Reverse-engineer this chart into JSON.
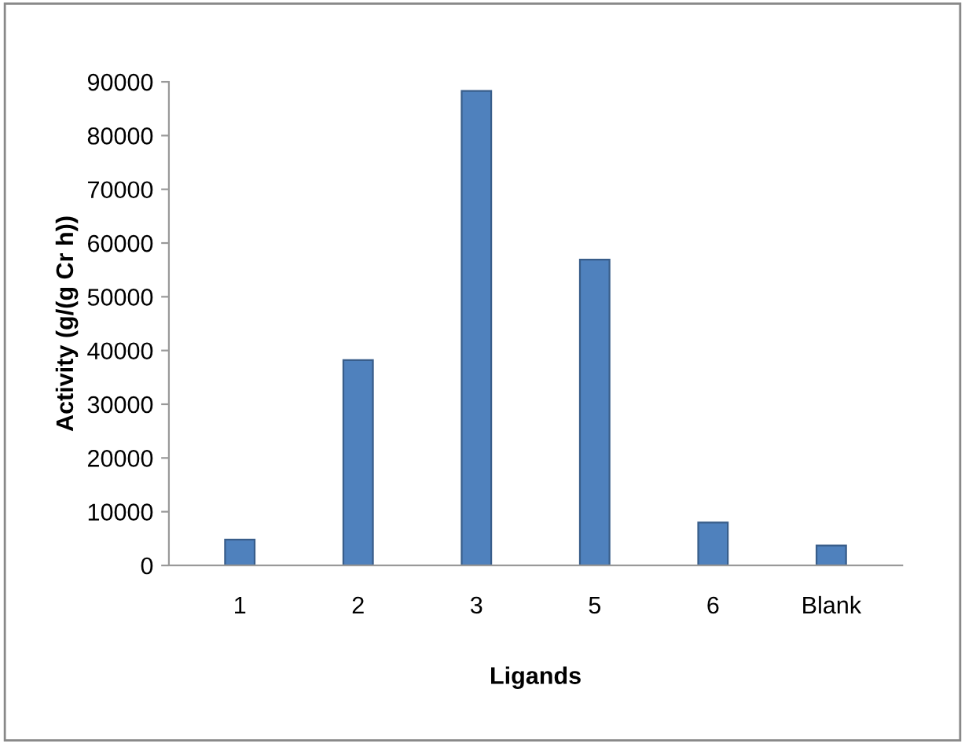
{
  "chart_data": {
    "type": "bar",
    "xlabel": "Ligands",
    "ylabel": "Activity (g/(g Cr h))",
    "categories": [
      "1",
      "2",
      "3",
      "5",
      "6",
      "Blank"
    ],
    "values": [
      4800,
      38200,
      88300,
      56900,
      8000,
      3700
    ],
    "color": "#4f81bd",
    "ylim": [
      0,
      90000
    ],
    "yticks": [
      0,
      10000,
      20000,
      30000,
      40000,
      50000,
      60000,
      70000,
      80000,
      90000
    ],
    "grid": false,
    "legend": false
  }
}
